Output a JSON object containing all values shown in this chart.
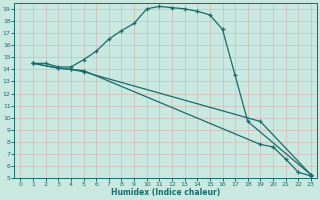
{
  "xlabel": "Humidex (Indice chaleur)",
  "ylabel": "",
  "xlim": [
    -0.5,
    23.5
  ],
  "ylim": [
    5,
    19.5
  ],
  "xticks": [
    0,
    1,
    2,
    3,
    4,
    5,
    6,
    7,
    8,
    9,
    10,
    11,
    12,
    13,
    14,
    15,
    16,
    17,
    18,
    19,
    20,
    21,
    22,
    23
  ],
  "yticks": [
    5,
    6,
    7,
    8,
    9,
    10,
    11,
    12,
    13,
    14,
    15,
    16,
    17,
    18,
    19
  ],
  "bg_color": "#c8e8e0",
  "grid_color": "#d4b8b8",
  "line_color": "#1a6b6b",
  "line1": {
    "x": [
      1,
      2,
      3,
      4,
      5,
      6,
      7,
      8,
      9,
      10,
      11,
      12,
      13,
      14,
      15,
      16,
      17,
      18,
      23
    ],
    "y": [
      14.5,
      14.5,
      14.2,
      14.2,
      14.8,
      15.5,
      16.5,
      17.2,
      17.8,
      19.0,
      19.2,
      19.1,
      19.0,
      18.8,
      18.5,
      17.3,
      13.5,
      9.7,
      5.3
    ]
  },
  "line2": {
    "x": [
      1,
      3,
      4,
      5,
      19,
      23
    ],
    "y": [
      14.5,
      14.1,
      14.0,
      13.8,
      9.7,
      5.3
    ]
  },
  "line3": {
    "x": [
      1,
      3,
      4,
      5,
      19,
      20,
      21,
      22,
      23
    ],
    "y": [
      14.5,
      14.1,
      14.0,
      13.9,
      7.8,
      7.6,
      6.6,
      5.5,
      5.2
    ]
  }
}
